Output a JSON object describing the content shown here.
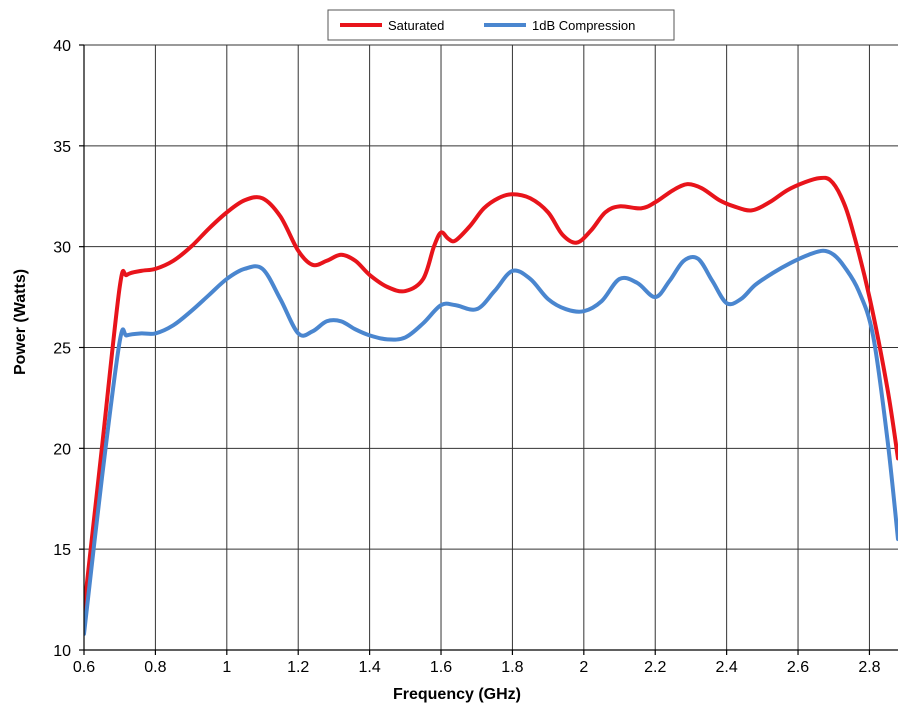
{
  "chart_data": {
    "type": "line",
    "title": "",
    "xlabel": "Frequency (GHz)",
    "ylabel": "Power (Watts)",
    "xlim": [
      0.6,
      2.88
    ],
    "ylim": [
      10,
      40
    ],
    "xticks": [
      0.6,
      0.8,
      1,
      1.2,
      1.4,
      1.6,
      1.8,
      2,
      2.2,
      2.4,
      2.6,
      2.8
    ],
    "xtick_labels": [
      "0.6",
      "0.8",
      "1",
      "1.2",
      "1.4",
      "1.6",
      "1.8",
      "2",
      "2.2",
      "2.4",
      "2.6",
      "2.8"
    ],
    "yticks": [
      10,
      15,
      20,
      25,
      30,
      35,
      40
    ],
    "ytick_labels": [
      "10",
      "15",
      "20",
      "25",
      "30",
      "35",
      "40"
    ],
    "grid": true,
    "legend_position": "top-center",
    "series": [
      {
        "name": "Saturated",
        "color": "#e8141b",
        "x": [
          0.6,
          0.65,
          0.7,
          0.72,
          0.76,
          0.8,
          0.85,
          0.9,
          0.95,
          1.0,
          1.05,
          1.1,
          1.15,
          1.2,
          1.24,
          1.28,
          1.32,
          1.36,
          1.4,
          1.45,
          1.5,
          1.55,
          1.58,
          1.6,
          1.62,
          1.64,
          1.68,
          1.72,
          1.76,
          1.8,
          1.85,
          1.9,
          1.94,
          1.98,
          2.02,
          2.06,
          2.1,
          2.16,
          2.2,
          2.25,
          2.29,
          2.33,
          2.38,
          2.42,
          2.47,
          2.52,
          2.57,
          2.62,
          2.66,
          2.69,
          2.72,
          2.75,
          2.8,
          2.85,
          2.88
        ],
        "y": [
          12.0,
          20.0,
          28.0,
          28.6,
          28.8,
          28.9,
          29.3,
          30.0,
          30.9,
          31.7,
          32.3,
          32.4,
          31.5,
          29.8,
          29.1,
          29.3,
          29.6,
          29.3,
          28.6,
          28.0,
          27.8,
          28.4,
          30.0,
          30.7,
          30.4,
          30.3,
          31.0,
          31.9,
          32.4,
          32.6,
          32.4,
          31.7,
          30.6,
          30.2,
          30.8,
          31.7,
          32.0,
          31.9,
          32.2,
          32.8,
          33.1,
          32.9,
          32.3,
          32.0,
          31.8,
          32.2,
          32.8,
          33.2,
          33.4,
          33.3,
          32.5,
          31.0,
          27.5,
          23.0,
          19.5
        ]
      },
      {
        "name": "1dB Compression",
        "color": "#4a86cf",
        "x": [
          0.6,
          0.65,
          0.7,
          0.72,
          0.76,
          0.8,
          0.85,
          0.9,
          0.95,
          1.0,
          1.05,
          1.1,
          1.15,
          1.2,
          1.24,
          1.28,
          1.32,
          1.36,
          1.4,
          1.45,
          1.5,
          1.55,
          1.6,
          1.64,
          1.7,
          1.75,
          1.8,
          1.85,
          1.9,
          1.95,
          2.0,
          2.05,
          2.1,
          2.15,
          2.2,
          2.24,
          2.28,
          2.32,
          2.36,
          2.4,
          2.44,
          2.48,
          2.53,
          2.58,
          2.63,
          2.67,
          2.7,
          2.73,
          2.77,
          2.81,
          2.85,
          2.88
        ],
        "y": [
          10.8,
          18.5,
          25.3,
          25.6,
          25.7,
          25.7,
          26.1,
          26.8,
          27.6,
          28.4,
          28.9,
          28.9,
          27.4,
          25.7,
          25.8,
          26.3,
          26.3,
          25.9,
          25.6,
          25.4,
          25.5,
          26.2,
          27.1,
          27.1,
          26.9,
          27.8,
          28.8,
          28.4,
          27.4,
          26.9,
          26.8,
          27.3,
          28.4,
          28.2,
          27.5,
          28.3,
          29.3,
          29.4,
          28.3,
          27.2,
          27.4,
          28.1,
          28.7,
          29.2,
          29.6,
          29.8,
          29.6,
          29.0,
          27.8,
          25.6,
          20.5,
          15.5
        ]
      }
    ]
  }
}
